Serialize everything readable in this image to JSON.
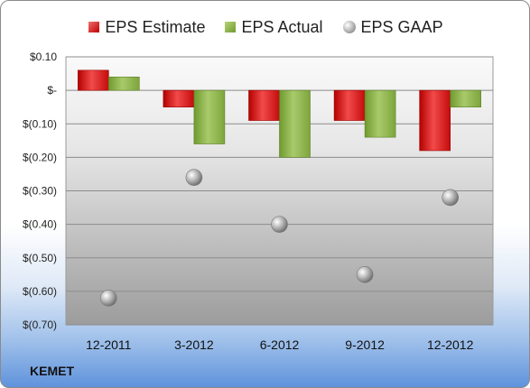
{
  "chart_data": {
    "type": "bar",
    "categories": [
      "12-2011",
      "3-2012",
      "6-2012",
      "9-2012",
      "12-2012"
    ],
    "series": [
      {
        "name": "EPS Estimate",
        "type": "bar",
        "values": [
          0.06,
          -0.05,
          -0.09,
          -0.09,
          -0.18
        ]
      },
      {
        "name": "EPS Actual",
        "type": "bar",
        "values": [
          0.04,
          -0.16,
          -0.2,
          -0.14,
          -0.05
        ]
      },
      {
        "name": "EPS GAAP",
        "type": "scatter",
        "values": [
          -0.62,
          -0.26,
          -0.4,
          -0.55,
          -0.32
        ]
      }
    ],
    "ylim": [
      -0.7,
      0.1
    ],
    "yticks": [
      {
        "value": 0.1,
        "label": "$0.10"
      },
      {
        "value": 0.0,
        "label": "$-"
      },
      {
        "value": -0.1,
        "label": "$(0.10)"
      },
      {
        "value": -0.2,
        "label": "$(0.20)"
      },
      {
        "value": -0.3,
        "label": "$(0.30)"
      },
      {
        "value": -0.4,
        "label": "$(0.40)"
      },
      {
        "value": -0.5,
        "label": "$(0.50)"
      },
      {
        "value": -0.6,
        "label": "$(0.60)"
      },
      {
        "value": -0.7,
        "label": "$(0.70)"
      }
    ],
    "grid": true,
    "legend_position": "top",
    "colors": {
      "estimate": "#d01f1f",
      "actual": "#8db255",
      "gaap": "#a8a8a8"
    }
  },
  "company": "KEMET"
}
